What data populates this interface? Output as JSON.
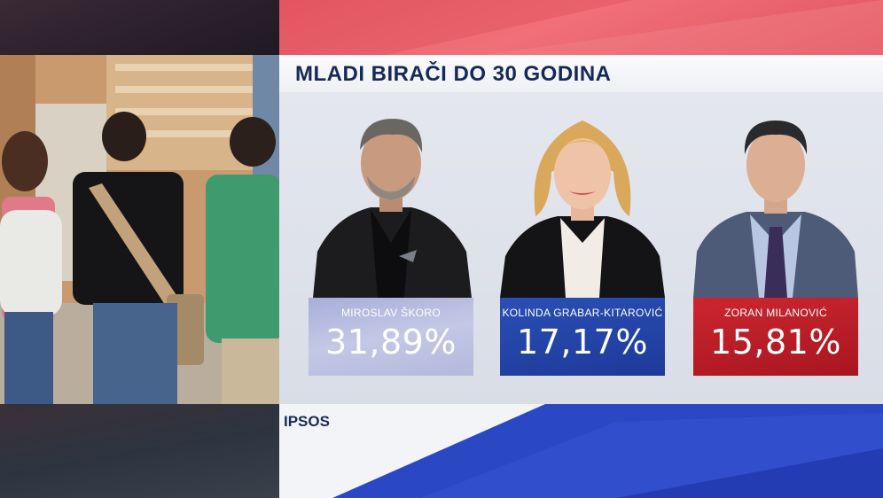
{
  "title": "MLADI BIRAČI DO 30 GODINA",
  "source": "IPSOS",
  "colors": {
    "accent_red": "#e85c66",
    "navy": "#14285a",
    "blue": "#1e3a9a",
    "red": "#b81c26",
    "lavender": "#b3b8dd"
  },
  "candidates": [
    {
      "name": "MIROSLAV ŠKORO",
      "value": "31,89%",
      "color": "#b3b8dd"
    },
    {
      "name": "KOLINDA GRABAR-KITAROVIĆ",
      "value": "17,17%",
      "color": "#1e3a9a"
    },
    {
      "name": "ZORAN MILANOVIĆ",
      "value": "15,81%",
      "color": "#b81c26"
    }
  ]
}
